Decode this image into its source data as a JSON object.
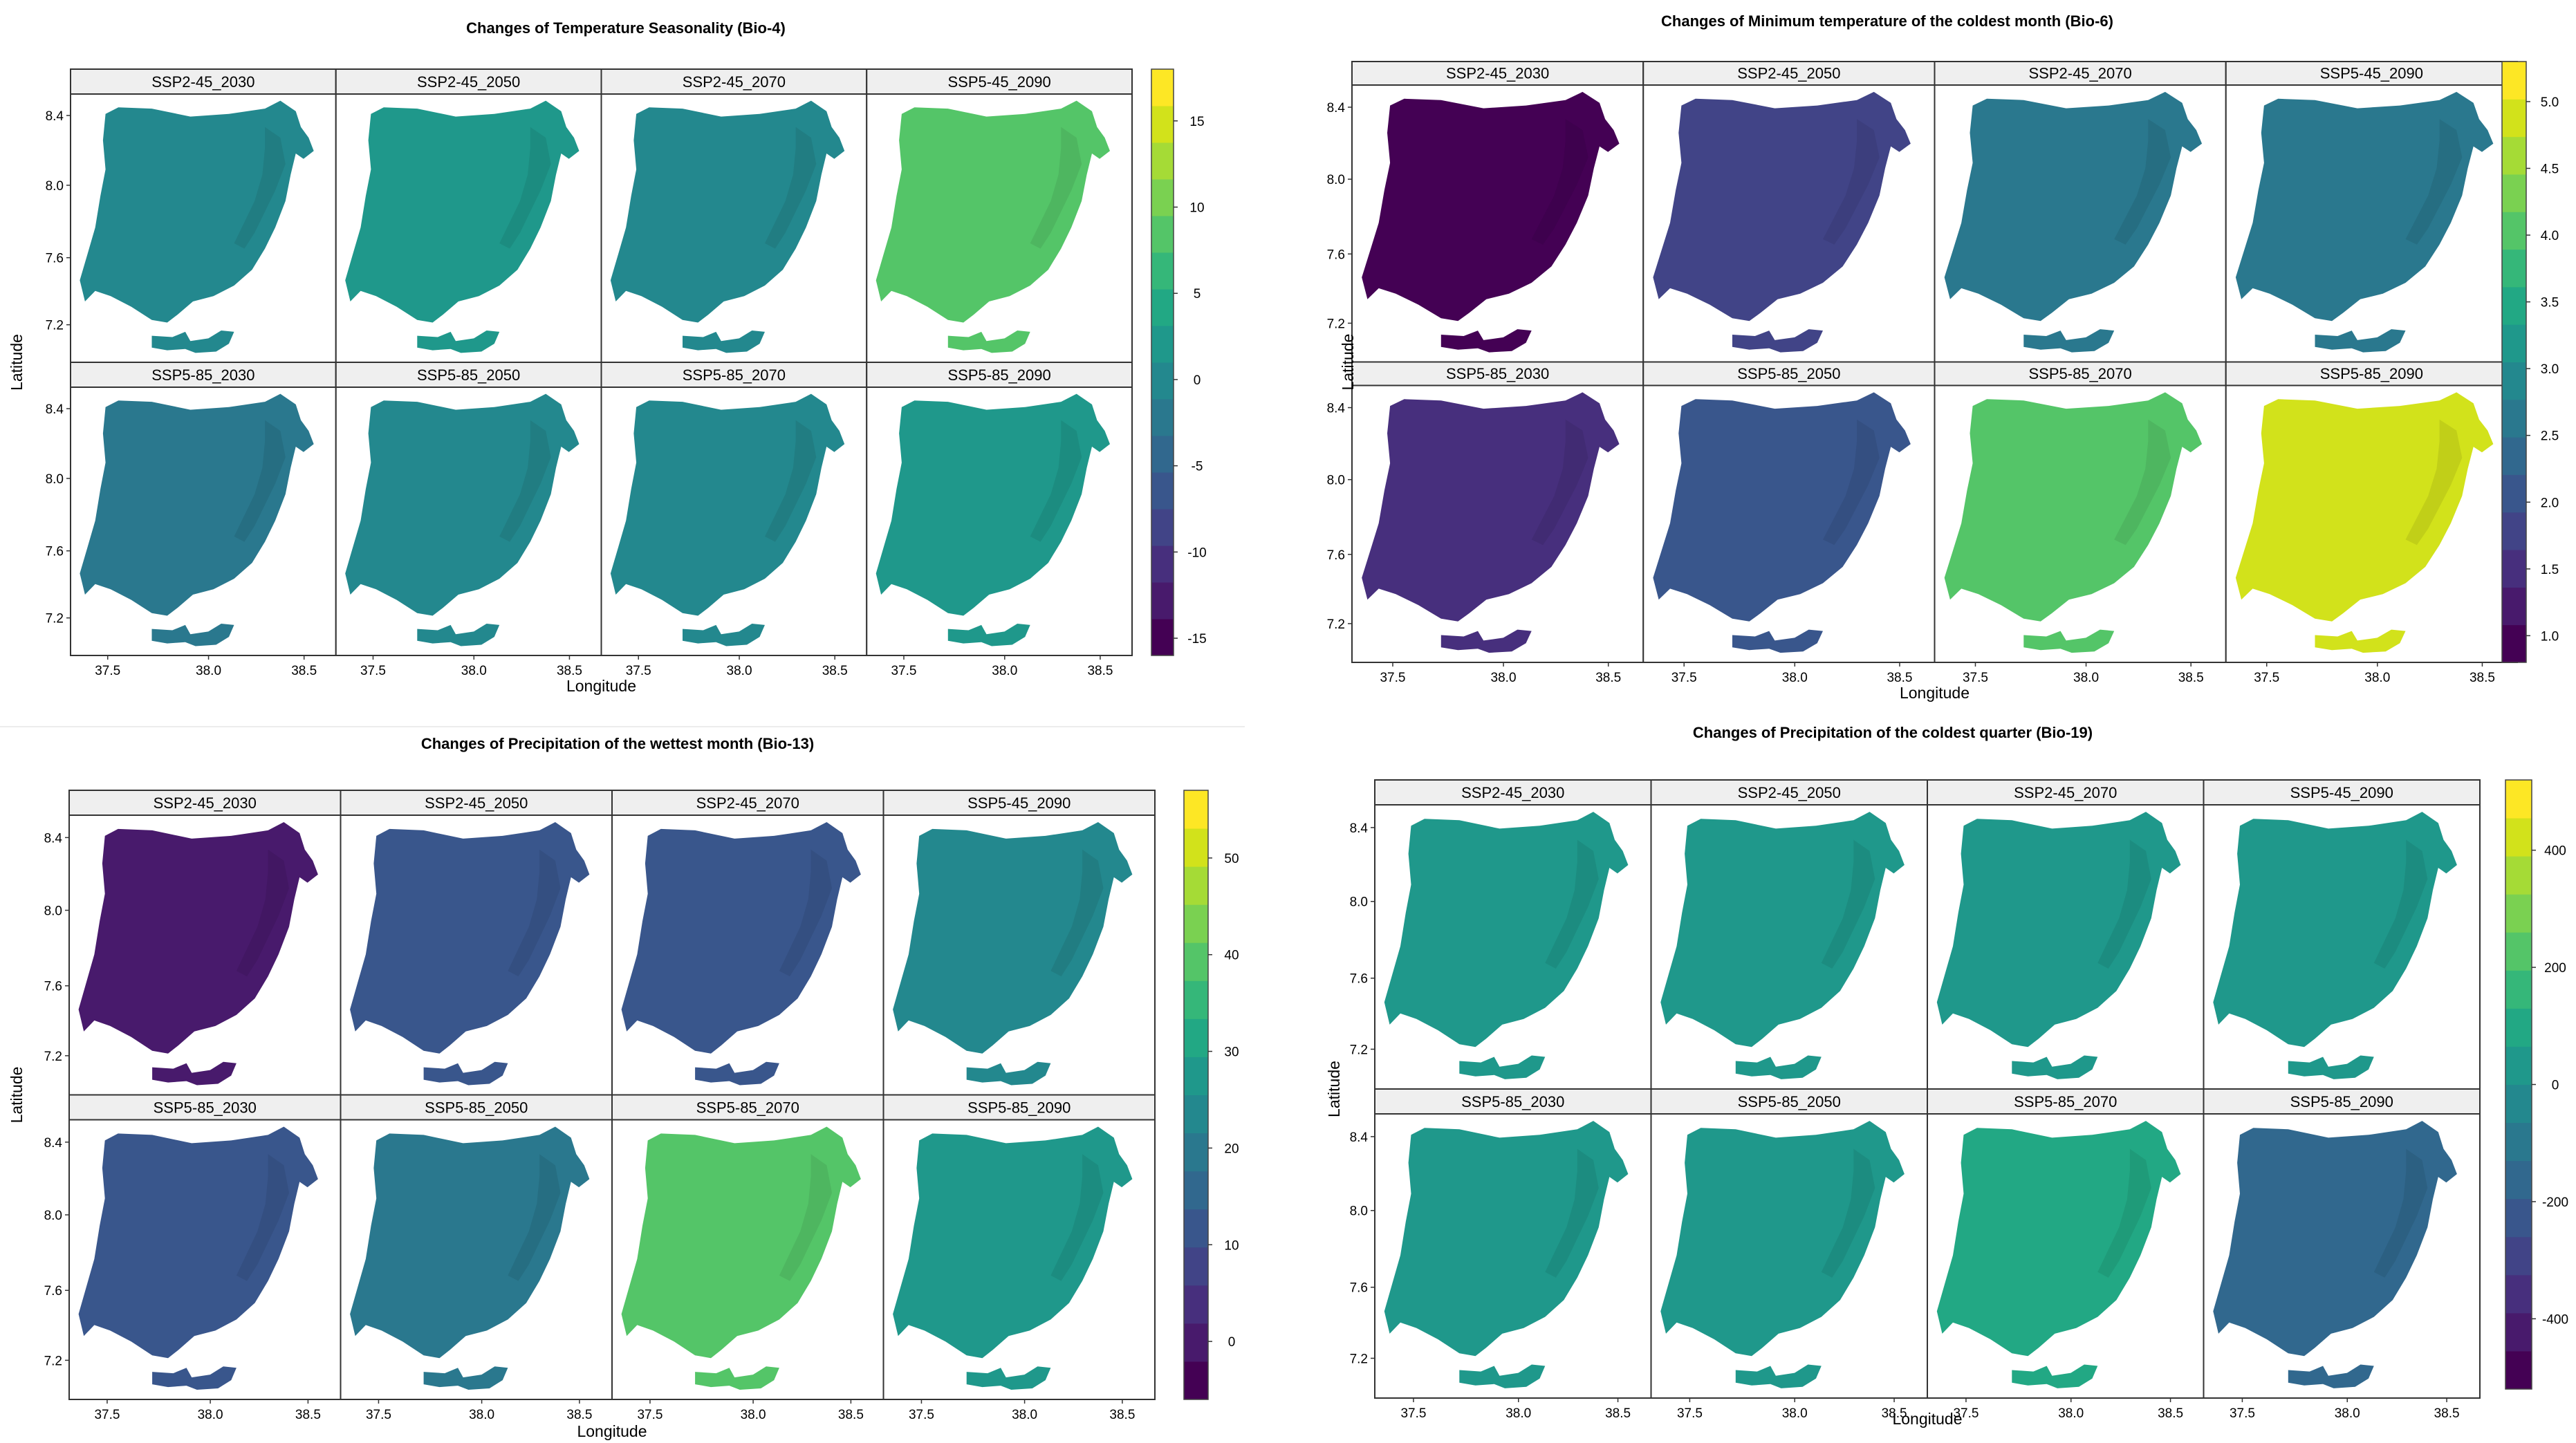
{
  "colors": {
    "viridis": [
      "#440154",
      "#481a6c",
      "#472f7d",
      "#414487",
      "#39568c",
      "#31688e",
      "#2a788e",
      "#23888e",
      "#1f988b",
      "#22a884",
      "#35b779",
      "#54c568",
      "#7ad151",
      "#a5db36",
      "#d2e21b",
      "#fde725"
    ],
    "panel_header_bg": "#efefef",
    "frame": "#333333"
  },
  "axes": {
    "latitude_label": "Latitude",
    "longitude_label": "Longitude",
    "lat_ticks": [
      "8.4",
      "8.0",
      "7.6",
      "7.2"
    ],
    "lon_ticks": [
      "37.5",
      "38.0",
      "38.5"
    ]
  },
  "figures": [
    {
      "id": "bio4",
      "title": "Changes of Temperature Seasonality (Bio-4)",
      "colorbar": {
        "min": -16,
        "max": 18,
        "ticks": [
          "15",
          "10",
          "5",
          "0",
          "-5",
          "-10",
          "-15"
        ]
      },
      "panels": [
        {
          "label": "SSP2-45_2030",
          "value": 0.4
        },
        {
          "label": "SSP2-45_2050",
          "value": 1.5
        },
        {
          "label": "SSP2-45_2070",
          "value": 0.8
        },
        {
          "label": "SSP5-45_2090",
          "value": 8.0
        },
        {
          "label": "SSP5-85_2030",
          "value": -2.5
        },
        {
          "label": "SSP5-85_2050",
          "value": -0.5
        },
        {
          "label": "SSP5-85_2070",
          "value": -1.0
        },
        {
          "label": "SSP5-85_2090",
          "value": 1.5
        }
      ]
    },
    {
      "id": "bio6",
      "title": "Changes of Minimum temperature of the coldest month (Bio-6)",
      "colorbar": {
        "min": 0.8,
        "max": 5.3,
        "ticks": [
          "5.0",
          "4.5",
          "4.0",
          "3.5",
          "3.0",
          "2.5",
          "2.0",
          "1.5",
          "1.0"
        ]
      },
      "panels": [
        {
          "label": "SSP2-45_2030",
          "value": 1.05
        },
        {
          "label": "SSP2-45_2050",
          "value": 1.9
        },
        {
          "label": "SSP2-45_2070",
          "value": 2.5
        },
        {
          "label": "SSP5-45_2090",
          "value": 2.65
        },
        {
          "label": "SSP5-85_2030",
          "value": 1.5
        },
        {
          "label": "SSP5-85_2050",
          "value": 2.15
        },
        {
          "label": "SSP5-85_2070",
          "value": 3.95
        },
        {
          "label": "SSP5-85_2090",
          "value": 4.85
        }
      ]
    },
    {
      "id": "bio13",
      "title": "Changes of Precipitation of the wettest month (Bio-13)",
      "colorbar": {
        "min": -6,
        "max": 57,
        "ticks": [
          "50",
          "40",
          "30",
          "20",
          "10",
          "0"
        ]
      },
      "panels": [
        {
          "label": "SSP2-45_2030",
          "value": 0
        },
        {
          "label": "SSP2-45_2050",
          "value": 12
        },
        {
          "label": "SSP2-45_2070",
          "value": 13
        },
        {
          "label": "SSP5-45_2090",
          "value": 23
        },
        {
          "label": "SSP5-85_2030",
          "value": 13
        },
        {
          "label": "SSP5-85_2050",
          "value": 20
        },
        {
          "label": "SSP5-85_2070",
          "value": 40
        },
        {
          "label": "SSP5-85_2090",
          "value": 27
        }
      ]
    },
    {
      "id": "bio19",
      "title": "Changes of Precipitation of the coldest quarter (Bio-19)",
      "colorbar": {
        "min": -520,
        "max": 520,
        "ticks": [
          "400",
          "200",
          "0",
          "-200",
          "-400"
        ]
      },
      "panels": [
        {
          "label": "SSP2-45_2030",
          "value": 60
        },
        {
          "label": "SSP2-45_2050",
          "value": 30
        },
        {
          "label": "SSP2-45_2070",
          "value": 30
        },
        {
          "label": "SSP5-45_2090",
          "value": 40
        },
        {
          "label": "SSP5-85_2030",
          "value": 40
        },
        {
          "label": "SSP5-85_2050",
          "value": 0
        },
        {
          "label": "SSP5-85_2070",
          "value": 80
        },
        {
          "label": "SSP5-85_2090",
          "value": -150
        }
      ]
    }
  ]
}
